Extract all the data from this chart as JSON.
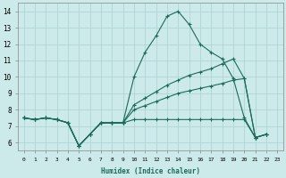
{
  "title": "",
  "xlabel": "Humidex (Indice chaleur)",
  "bg_color": "#cceaea",
  "grid_color": "#b0d4d4",
  "line_color": "#1a6b5a",
  "xlim": [
    -0.5,
    23.5
  ],
  "ylim": [
    5.5,
    14.5
  ],
  "xticks": [
    0,
    1,
    2,
    3,
    4,
    5,
    6,
    7,
    8,
    9,
    10,
    11,
    12,
    13,
    14,
    15,
    16,
    17,
    18,
    19,
    20,
    21,
    22,
    23
  ],
  "yticks": [
    6,
    7,
    8,
    9,
    10,
    11,
    12,
    13,
    14
  ],
  "s1": [
    7.5,
    7.4,
    7.5,
    7.4,
    7.2,
    5.8,
    6.5,
    7.2,
    7.2,
    7.2,
    10.0,
    11.5,
    12.5,
    13.7,
    14.0,
    13.2,
    12.0,
    11.5,
    11.1,
    9.9,
    7.5,
    6.3,
    6.5,
    null
  ],
  "s2": [
    7.5,
    7.4,
    7.5,
    7.4,
    7.2,
    5.8,
    6.5,
    7.2,
    7.2,
    7.2,
    8.3,
    8.7,
    9.1,
    9.5,
    9.8,
    10.1,
    10.3,
    10.5,
    10.8,
    11.1,
    9.9,
    6.3,
    6.5,
    null
  ],
  "s3": [
    7.5,
    7.4,
    7.5,
    7.4,
    7.2,
    5.8,
    6.5,
    7.2,
    7.2,
    7.2,
    8.0,
    8.25,
    8.5,
    8.75,
    9.0,
    9.15,
    9.3,
    9.45,
    9.6,
    9.8,
    9.9,
    6.3,
    6.5,
    null
  ],
  "s4": [
    7.5,
    7.4,
    7.5,
    7.4,
    7.2,
    5.8,
    6.5,
    7.2,
    7.2,
    7.2,
    7.4,
    7.4,
    7.4,
    7.4,
    7.4,
    7.4,
    7.4,
    7.4,
    7.4,
    7.4,
    7.4,
    6.3,
    6.5,
    null
  ]
}
